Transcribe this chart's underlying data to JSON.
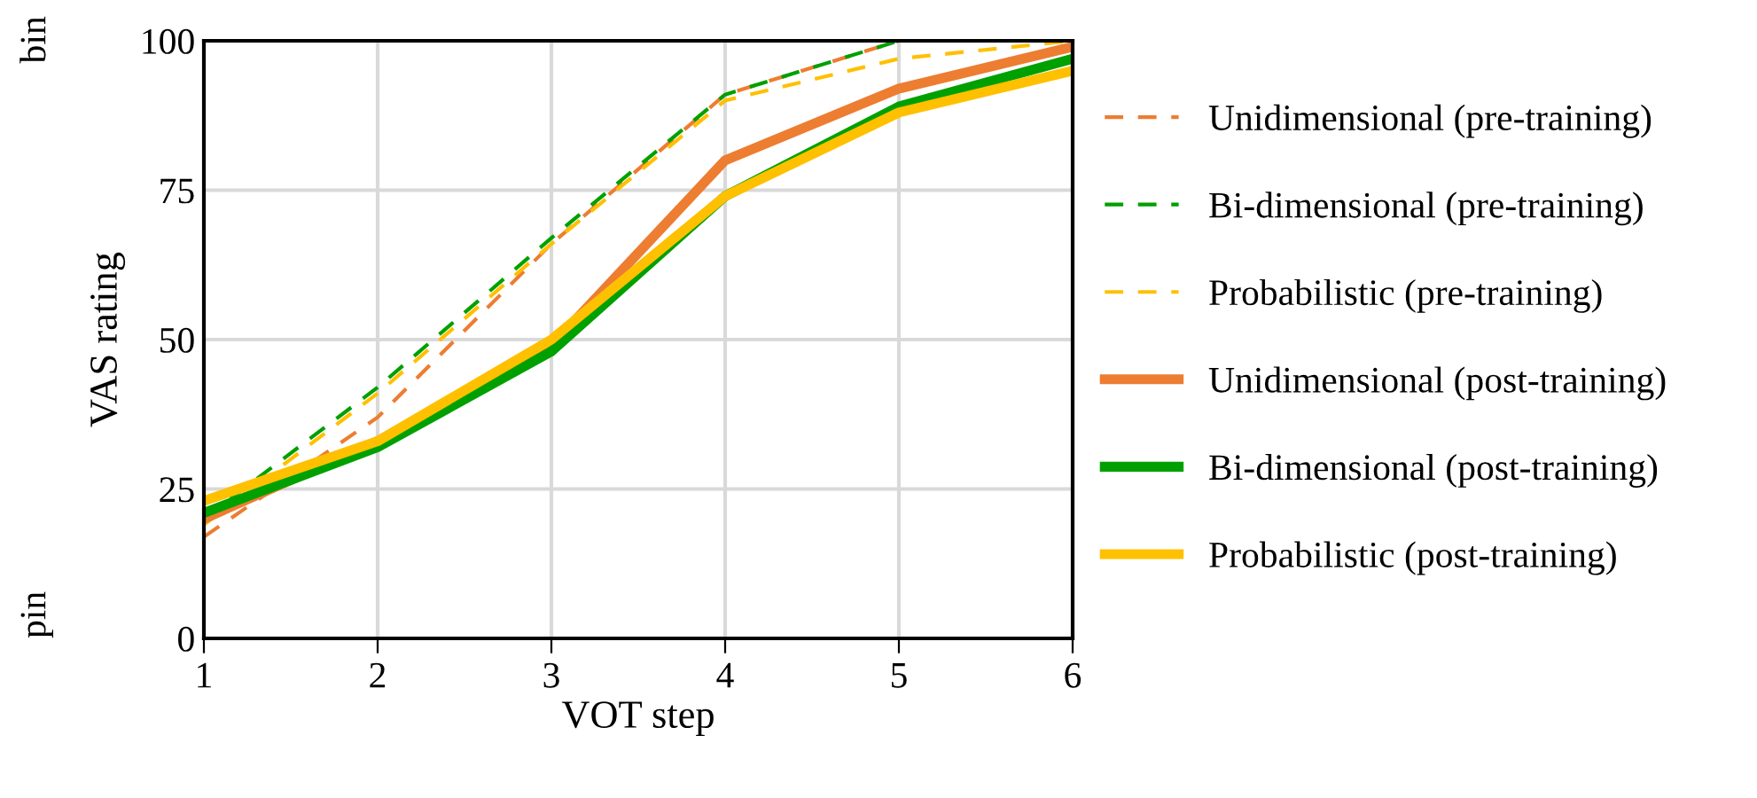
{
  "chart_data": {
    "type": "line",
    "xlabel": "VOT step",
    "ylabel": "VAS rating",
    "x": [
      1,
      2,
      3,
      4,
      5,
      6
    ],
    "xlim": [
      1,
      6
    ],
    "xticks": [
      1,
      2,
      3,
      4,
      5,
      6
    ],
    "ylim": [
      0,
      100
    ],
    "yticks": [
      0,
      25,
      50,
      75,
      100
    ],
    "grid": true,
    "legend": "right",
    "marker": "none",
    "annotations": [
      "bin",
      "pin"
    ],
    "series": [
      {
        "name": "Unidimensional (pre-training)",
        "color": "#ed7d31",
        "line_style": "dashed",
        "values": [
          17,
          37,
          66,
          91,
          100,
          100
        ]
      },
      {
        "name": "Bi-dimensional (pre-training)",
        "color": "#00a000",
        "line_style": "dashed",
        "values": [
          20,
          42,
          67,
          91,
          100,
          100
        ]
      },
      {
        "name": "Probabilistic (pre-training)",
        "color": "#ffc000",
        "line_style": "dashed",
        "values": [
          19,
          41,
          66,
          90,
          97,
          100
        ]
      },
      {
        "name": "Unidimensional (post-training)",
        "color": "#ed7d31",
        "line_style": "solid",
        "values": [
          20,
          33,
          49,
          80,
          92,
          99
        ]
      },
      {
        "name": "Bi-dimensional (post-training)",
        "color": "#00a000",
        "line_style": "solid",
        "values": [
          21,
          32,
          48,
          74,
          89,
          97
        ]
      },
      {
        "name": "Probabilistic (post-training)",
        "color": "#ffc000",
        "line_style": "solid",
        "values": [
          23,
          33,
          50,
          74,
          88,
          95
        ]
      }
    ]
  }
}
